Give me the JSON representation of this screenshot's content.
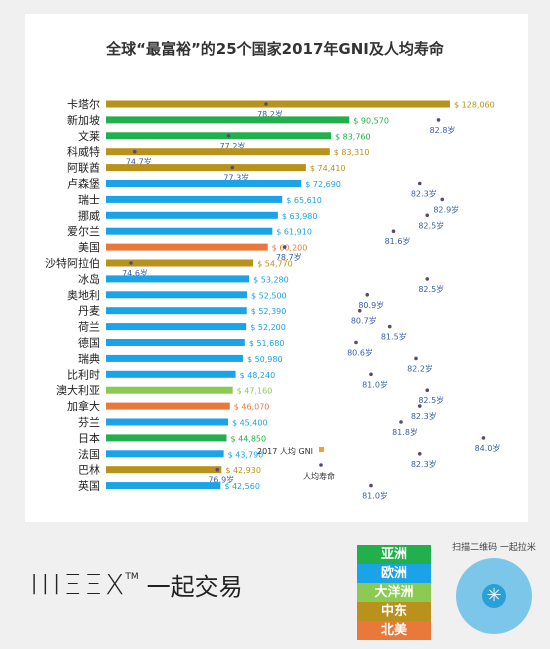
{
  "title": "全球“最富裕”的25个国家2017年GNI及人均寿命",
  "colors": {
    "亚洲": "#22b04c",
    "欧洲": "#1aa3e8",
    "大洋洲": "#8ccb53",
    "中东": "#b8921a",
    "北美": "#e8793a",
    "life_dot": "#5a4a6a"
  },
  "chart_data": {
    "type": "bar",
    "categories": [
      "卡塔尔",
      "新加坡",
      "文莱",
      "科威特",
      "阿联酋",
      "卢森堡",
      "瑞士",
      "挪威",
      "爱尔兰",
      "美国",
      "沙特阿拉伯",
      "冰岛",
      "奥地利",
      "丹麦",
      "荷兰",
      "德国",
      "瑞典",
      "比利时",
      "澳大利亚",
      "加拿大",
      "芬兰",
      "日本",
      "法国",
      "巴林",
      "英国"
    ],
    "regions": [
      "中东",
      "亚洲",
      "亚洲",
      "中东",
      "中东",
      "欧洲",
      "欧洲",
      "欧洲",
      "欧洲",
      "北美",
      "中东",
      "欧洲",
      "欧洲",
      "欧洲",
      "欧洲",
      "欧洲",
      "欧洲",
      "欧洲",
      "大洋洲",
      "北美",
      "欧洲",
      "亚洲",
      "欧洲",
      "中东",
      "欧洲"
    ],
    "series": [
      {
        "name": "2017 人均 GNI",
        "values": [
          128060,
          90570,
          83760,
          83310,
          74410,
          72690,
          65610,
          63980,
          61910,
          60200,
          54770,
          53280,
          52500,
          52390,
          52200,
          51680,
          50980,
          48240,
          47160,
          46070,
          45400,
          44850,
          43790,
          42930,
          42560
        ]
      },
      {
        "name": "人均寿命",
        "values": [
          78.2,
          82.8,
          77.2,
          74.7,
          77.3,
          82.3,
          82.9,
          82.5,
          81.6,
          78.7,
          74.6,
          82.5,
          80.9,
          80.7,
          81.5,
          80.6,
          82.2,
          81.0,
          82.5,
          82.3,
          81.8,
          84.0,
          82.3,
          76.9,
          81.0
        ]
      }
    ],
    "gni_labels": [
      "$ 128,060",
      "$ 90,570",
      "$ 83,760",
      "$ 83,310",
      "$ 74,410",
      "$ 72,690",
      "$ 65,610",
      "$ 63,980",
      "$ 61,910",
      "$ 60,200",
      "$ 54,770",
      "$ 53,280",
      "$ 52,500",
      "$ 52,390",
      "$ 52,200",
      "$ 51,680",
      "$ 50,980",
      "$ 48,240",
      "$ 47,160",
      "$ 46,070",
      "$ 45,400",
      "$ 44,850",
      "$ 43,790",
      "$ 42,930",
      "$ 42,560"
    ],
    "life_labels": [
      "78.2岁",
      "82.8岁",
      "77.2岁",
      "74.7岁",
      "77.3岁",
      "82.3岁",
      "82.9岁",
      "82.5岁",
      "81.6岁",
      "78.7岁",
      "74.6岁",
      "82.5岁",
      "80.9岁",
      "80.7岁",
      "81.5岁",
      "80.6岁",
      "82.2岁",
      "81.0岁",
      "82.5岁",
      "82.3岁",
      "81.8岁",
      "84.0岁",
      "82.3岁",
      "76.9岁",
      "81.0岁"
    ],
    "legend": [
      "2017 人均 GNI",
      "人均寿命"
    ]
  },
  "region_legend": [
    "亚洲",
    "欧洲",
    "大洋洲",
    "中东",
    "北美"
  ],
  "logo": {
    "mark": "IIIΞΞX",
    "tm": "TM",
    "text": "一起交易"
  },
  "qr_caption": "扫描二维码 一起拉米"
}
